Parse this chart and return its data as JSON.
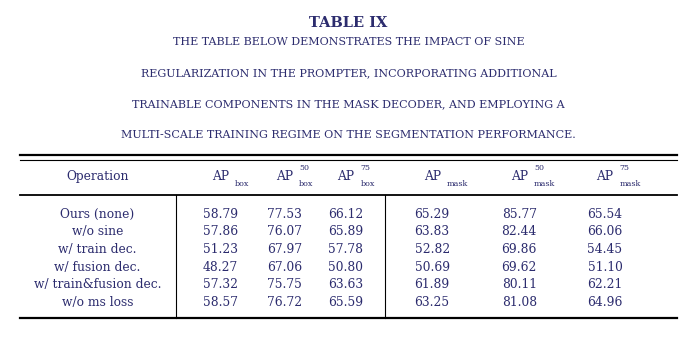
{
  "title": "TABLE IX",
  "subtitle_lines": [
    "The table below demonstrates the impact of sine",
    "regularization in the prompter, incorporating additional",
    "trainable components in the mask decoder, and employing a",
    "multi-scale training regime on the segmentation performance."
  ],
  "col_headers": [
    "Operation",
    "APbox",
    "AP50box",
    "AP75box",
    "APmask",
    "AP50mask",
    "AP75mask"
  ],
  "col_super": [
    "",
    "",
    "50",
    "75",
    "",
    "50",
    "75"
  ],
  "col_sub": [
    "",
    "box",
    "box",
    "box",
    "mask",
    "mask",
    "mask"
  ],
  "rows": [
    [
      "Ours (none)",
      "58.79",
      "77.53",
      "66.12",
      "65.29",
      "85.77",
      "65.54"
    ],
    [
      "w/o sine",
      "57.86",
      "76.07",
      "65.89",
      "63.83",
      "82.44",
      "66.06"
    ],
    [
      "w/ train dec.",
      "51.23",
      "67.97",
      "57.78",
      "52.82",
      "69.86",
      "54.45"
    ],
    [
      "w/ fusion dec.",
      "48.27",
      "67.06",
      "50.80",
      "50.69",
      "69.62",
      "51.10"
    ],
    [
      "w/ train&fusion dec.",
      "57.32",
      "75.75",
      "63.63",
      "61.89",
      "80.11",
      "62.21"
    ],
    [
      "w/o ms loss",
      "58.57",
      "76.72",
      "65.59",
      "63.25",
      "81.08",
      "64.96"
    ]
  ],
  "bg_color": "#ffffff",
  "text_color": "#2c2c6e",
  "title_color": "#2c2c6e",
  "font_family": "serif",
  "figsize": [
    6.97,
    3.53
  ],
  "dpi": 100
}
